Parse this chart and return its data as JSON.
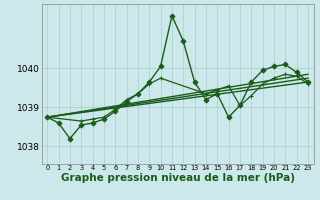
{
  "background_color": "#cce8ea",
  "grid_color": "#aacccc",
  "line_color": "#1a5c1a",
  "marker_color": "#1a5c1a",
  "xlabel": "Graphe pression niveau de la mer (hPa)",
  "xlabel_fontsize": 7.5,
  "xlim": [
    -0.5,
    23.5
  ],
  "ylim": [
    1037.55,
    1041.65
  ],
  "yticks": [
    1038,
    1039,
    1040
  ],
  "xticks": [
    0,
    1,
    2,
    3,
    4,
    5,
    6,
    7,
    8,
    9,
    10,
    11,
    12,
    13,
    14,
    15,
    16,
    17,
    18,
    19,
    20,
    21,
    22,
    23
  ],
  "series": [
    {
      "x": [
        0,
        1,
        2,
        3,
        4,
        5,
        6,
        7,
        8,
        9,
        10,
        11,
        12,
        13,
        14,
        15,
        16,
        17,
        18,
        19,
        20,
        21,
        22,
        23
      ],
      "y": [
        1038.75,
        1038.6,
        1038.2,
        1038.55,
        1038.6,
        1038.7,
        1038.9,
        1039.15,
        1039.35,
        1039.65,
        1040.05,
        1041.35,
        1040.7,
        1039.65,
        1039.2,
        1039.35,
        1038.75,
        1039.05,
        1039.65,
        1039.95,
        1040.05,
        1040.1,
        1039.9,
        1039.65
      ],
      "marker": "D",
      "markersize": 2.5,
      "linewidth": 1.0
    },
    {
      "x": [
        0,
        23
      ],
      "y": [
        1038.75,
        1039.65
      ],
      "marker": null,
      "markersize": 0,
      "linewidth": 1.0
    },
    {
      "x": [
        0,
        23
      ],
      "y": [
        1038.75,
        1039.75
      ],
      "marker": null,
      "markersize": 0,
      "linewidth": 1.0
    },
    {
      "x": [
        0,
        23
      ],
      "y": [
        1038.75,
        1039.85
      ],
      "marker": null,
      "markersize": 0,
      "linewidth": 1.0
    },
    {
      "x": [
        0,
        3,
        4,
        5,
        6,
        7,
        8,
        9,
        10,
        14,
        15,
        16,
        17,
        18,
        19,
        20,
        21,
        22,
        23
      ],
      "y": [
        1038.75,
        1038.65,
        1038.7,
        1038.75,
        1038.95,
        1039.2,
        1039.35,
        1039.6,
        1039.75,
        1039.35,
        1039.45,
        1039.55,
        1039.05,
        1039.3,
        1039.6,
        1039.75,
        1039.85,
        1039.8,
        1039.6
      ],
      "marker": "+",
      "markersize": 3.5,
      "linewidth": 0.9
    }
  ]
}
